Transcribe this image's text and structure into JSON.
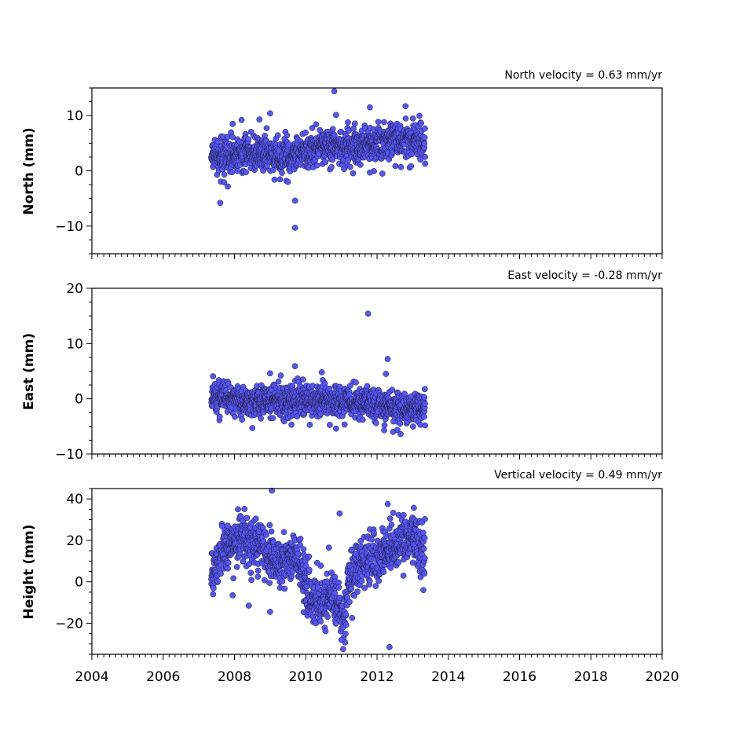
{
  "colors": {
    "marker_fill": "#5555ff",
    "marker_edge": "#1a1a1a",
    "axes": "#000000"
  },
  "chart_data": [
    {
      "type": "scatter",
      "title": "North velocity = 0.63 mm/yr",
      "xlabel": "",
      "ylabel": "North (mm)",
      "xlim": [
        2004,
        2020
      ],
      "ylim": [
        -15,
        15
      ],
      "yticks": [
        -10,
        0,
        10
      ],
      "xticks": [
        2004,
        2006,
        2008,
        2010,
        2012,
        2014,
        2016,
        2018,
        2020
      ],
      "xtick_labels_shown": false,
      "grid": false,
      "legend": "none",
      "data_range": [
        2007.35,
        2013.35
      ],
      "trend": [
        [
          2007.4,
          2.5
        ],
        [
          2008.5,
          3.2
        ],
        [
          2009.5,
          2.6
        ],
        [
          2010.5,
          4.5
        ],
        [
          2011.5,
          4.3
        ],
        [
          2012.5,
          5.8
        ],
        [
          2013.3,
          5.5
        ]
      ],
      "noise": 1.6,
      "outliers": [
        [
          2007.6,
          -5.8
        ],
        [
          2009.7,
          -10.3
        ],
        [
          2009.7,
          -5.4
        ],
        [
          2010.8,
          14.4
        ],
        [
          2011.8,
          11.5
        ],
        [
          2012.8,
          11.7
        ],
        [
          2009.0,
          10.4
        ],
        [
          2010.85,
          10.1
        ],
        [
          2008.7,
          9.3
        ],
        [
          2007.95,
          8.5
        ],
        [
          2008.2,
          9.2
        ],
        [
          2013.35,
          1.3
        ],
        [
          2011.8,
          -0.3
        ],
        [
          2012.15,
          -0.5
        ],
        [
          2009.5,
          -2.0
        ]
      ]
    },
    {
      "type": "scatter",
      "title": "East velocity = -0.28 mm/yr",
      "xlabel": "",
      "ylabel": "East (mm)",
      "xlim": [
        2004,
        2020
      ],
      "ylim": [
        -10,
        20
      ],
      "yticks": [
        -10,
        0,
        10,
        20
      ],
      "xticks": [
        2004,
        2006,
        2008,
        2010,
        2012,
        2014,
        2016,
        2018,
        2020
      ],
      "xtick_labels_shown": false,
      "grid": false,
      "legend": "none",
      "data_range": [
        2007.35,
        2013.35
      ],
      "trend": [
        [
          2007.4,
          0.5
        ],
        [
          2008.5,
          -0.5
        ],
        [
          2009.5,
          -0.3
        ],
        [
          2010.5,
          -0.2
        ],
        [
          2011.5,
          -0.8
        ],
        [
          2012.5,
          -1.5
        ],
        [
          2013.3,
          -1.8
        ]
      ],
      "noise": 1.4,
      "outliers": [
        [
          2011.75,
          15.4
        ],
        [
          2012.3,
          7.2
        ],
        [
          2009.7,
          5.9
        ],
        [
          2010.45,
          4.8
        ],
        [
          2012.25,
          4.5
        ],
        [
          2009.0,
          4.6
        ],
        [
          2009.3,
          4.2
        ],
        [
          2012.2,
          -5.7
        ],
        [
          2008.5,
          -5.3
        ],
        [
          2010.85,
          -5.4
        ],
        [
          2012.45,
          -6.0
        ],
        [
          2009.6,
          -4.7
        ]
      ]
    },
    {
      "type": "scatter",
      "title": "Vertical velocity = 0.49 mm/yr",
      "xlabel": "",
      "ylabel": "Height (mm)",
      "xlim": [
        2004,
        2020
      ],
      "ylim": [
        -35,
        45
      ],
      "yticks": [
        -20,
        0,
        20,
        40
      ],
      "xticks": [
        2004,
        2006,
        2008,
        2010,
        2012,
        2014,
        2016,
        2018,
        2020
      ],
      "xtick_labels": [
        "2004",
        "2006",
        "2008",
        "2010",
        "2012",
        "2014",
        "2016",
        "2018",
        "2020"
      ],
      "xtick_labels_shown": true,
      "grid": false,
      "legend": "none",
      "data_range": [
        2007.35,
        2013.35
      ],
      "trend": [
        [
          2007.35,
          5
        ],
        [
          2007.7,
          15
        ],
        [
          2008.2,
          22
        ],
        [
          2008.8,
          16
        ],
        [
          2009.2,
          10
        ],
        [
          2009.8,
          12
        ],
        [
          2010.05,
          -5
        ],
        [
          2010.4,
          -12
        ],
        [
          2010.8,
          -8
        ],
        [
          2011.05,
          -18
        ],
        [
          2011.25,
          2
        ],
        [
          2011.6,
          10
        ],
        [
          2012.0,
          12
        ],
        [
          2012.5,
          18
        ],
        [
          2013.0,
          22
        ],
        [
          2013.35,
          14
        ]
      ],
      "noise": 6,
      "outliers": [
        [
          2009.05,
          44
        ],
        [
          2010.95,
          33
        ],
        [
          2008.1,
          35
        ],
        [
          2012.3,
          37.5
        ],
        [
          2012.35,
          -31.5
        ],
        [
          2011.05,
          -32.5
        ],
        [
          2011.0,
          -28
        ],
        [
          2008.4,
          -11.5
        ],
        [
          2009.0,
          -14.5
        ],
        [
          2007.95,
          -6.5
        ],
        [
          2013.3,
          -4
        ],
        [
          2007.4,
          -6
        ],
        [
          2010.65,
          16.5
        ]
      ]
    }
  ]
}
